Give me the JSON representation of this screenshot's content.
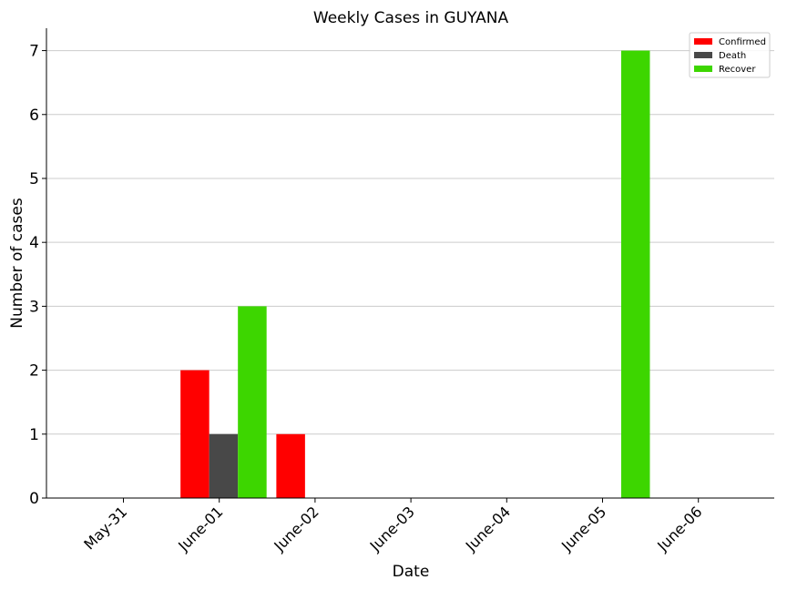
{
  "chart_data": {
    "type": "bar",
    "title": "Weekly Cases in GUYANA",
    "xlabel": "Date",
    "ylabel": "Number of cases",
    "categories": [
      "May-31",
      "June-01",
      "June-02",
      "June-03",
      "June-04",
      "June-05",
      "June-06"
    ],
    "series": [
      {
        "name": "Confirmed",
        "color": "#ff0000",
        "values": [
          0,
          2,
          1,
          0,
          0,
          0,
          0
        ]
      },
      {
        "name": "Death",
        "color": "#484848",
        "values": [
          0,
          1,
          0,
          0,
          0,
          0,
          0
        ]
      },
      {
        "name": "Recover",
        "color": "#3dd600",
        "values": [
          0,
          3,
          0,
          0,
          0,
          7,
          0
        ]
      }
    ],
    "ylim": [
      0,
      7.35
    ],
    "yticks": [
      0,
      1,
      2,
      3,
      4,
      5,
      6,
      7
    ],
    "grid": "horizontal",
    "legend": "top-right"
  }
}
